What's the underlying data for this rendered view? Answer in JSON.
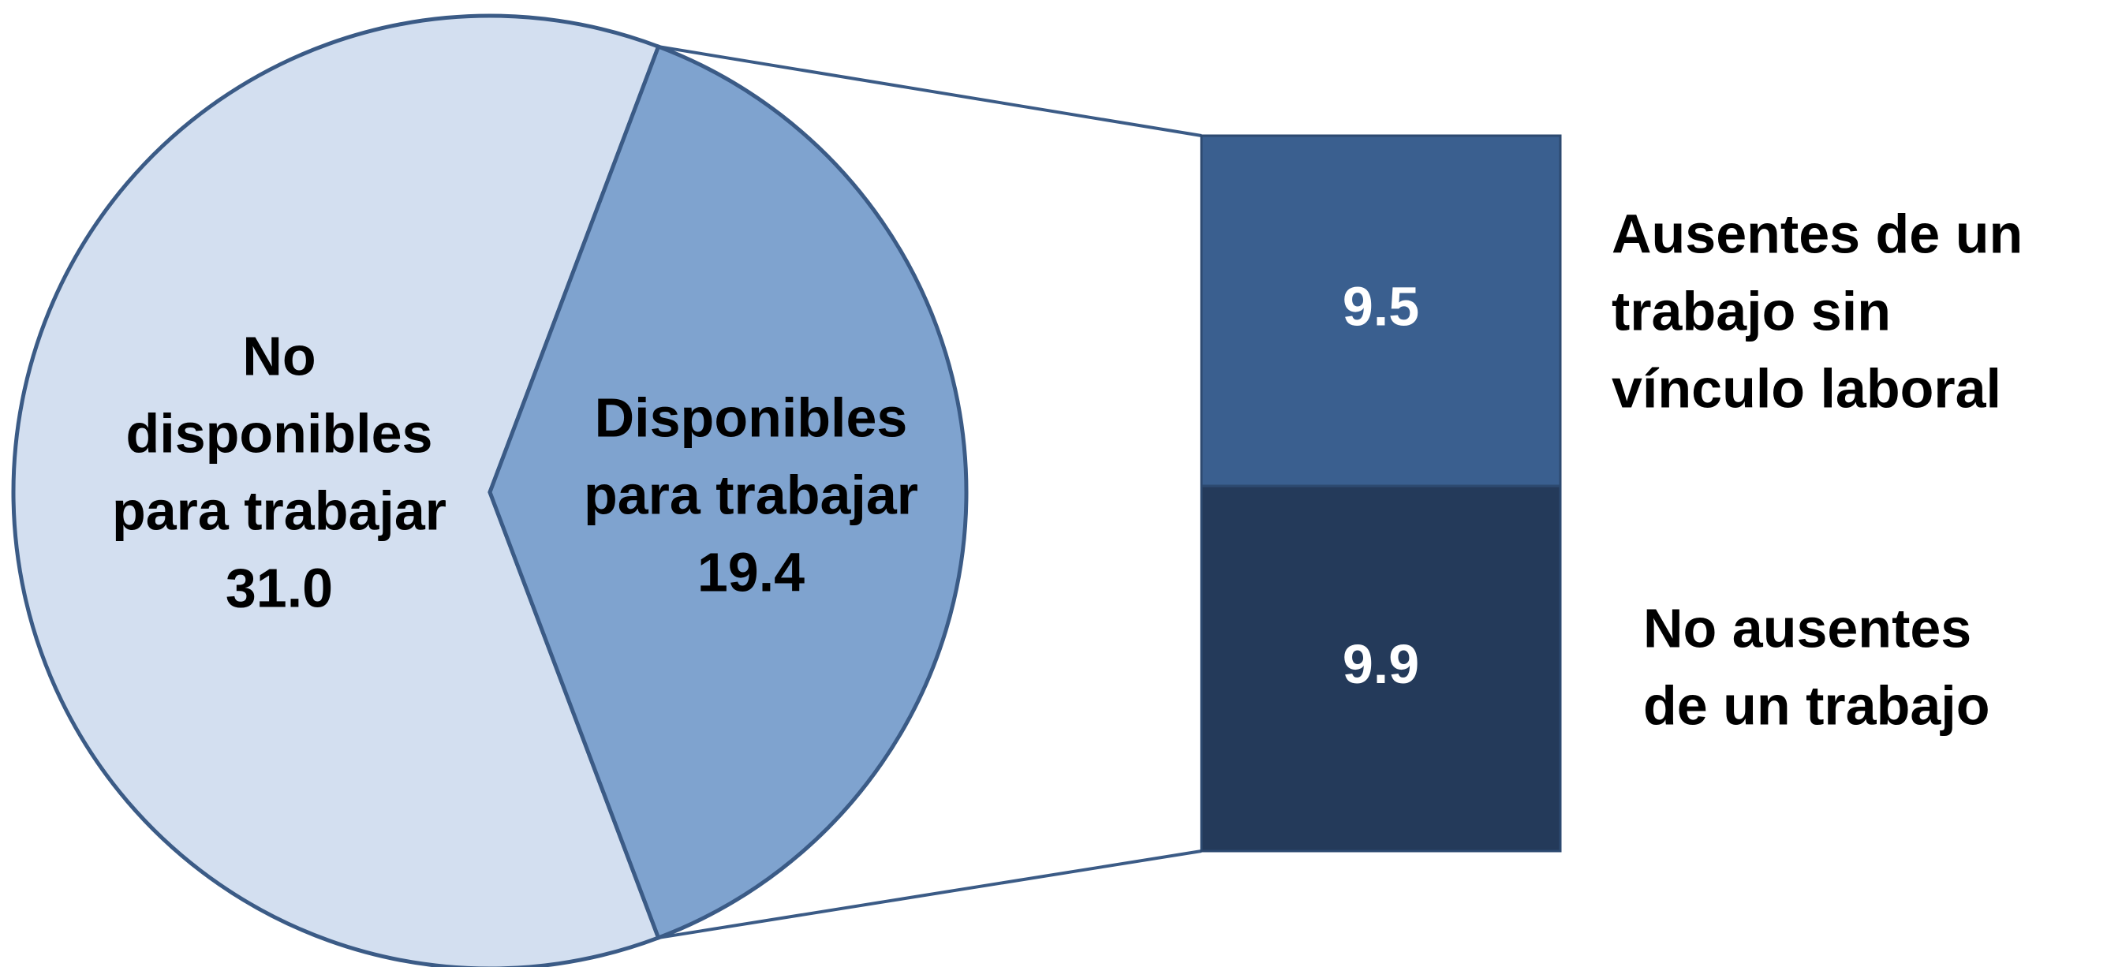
{
  "chart_data": {
    "type": "bar-of-pie",
    "pie": {
      "labels": [
        [
          "No",
          "disponibles",
          "para trabajar"
        ],
        [
          "Disponibles",
          "para trabajar"
        ]
      ],
      "values": [
        31.0,
        19.4
      ],
      "value_labels": [
        "31.0",
        "19.4"
      ],
      "colors": [
        "#d3dff0",
        "#7fa3cf"
      ]
    },
    "bar": {
      "labels": [
        [
          "Ausentes de un",
          "trabajo sin",
          "vínculo laboral"
        ],
        [
          "No ausentes",
          "de un trabajo"
        ]
      ],
      "values": [
        9.5,
        9.9
      ],
      "colors": [
        "#3a5f8f",
        "#243a5a"
      ]
    }
  }
}
